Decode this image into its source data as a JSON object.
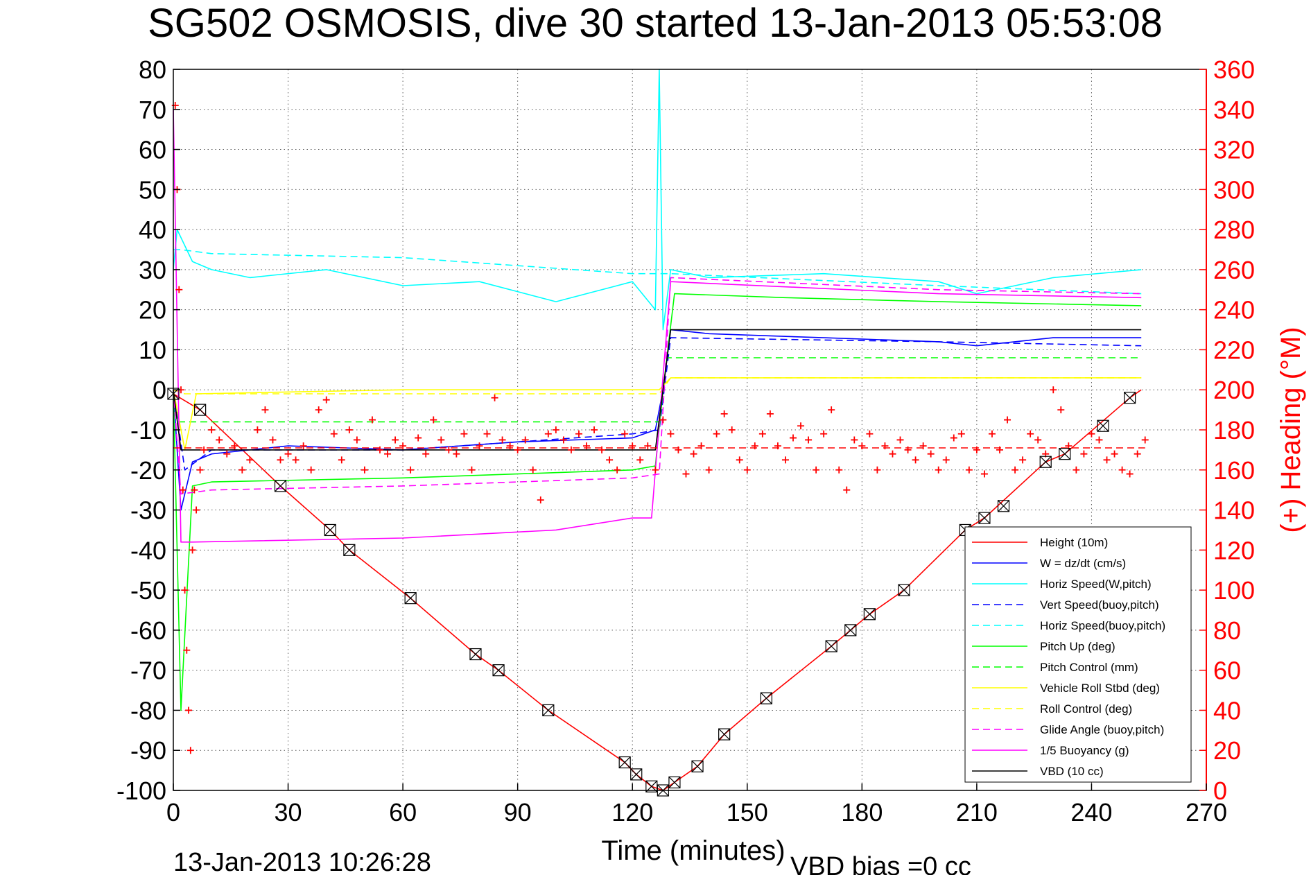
{
  "chart_data": {
    "type": "line",
    "title": "SG502 OSMOSIS, dive 30 started 13-Jan-2013 05:53:08",
    "xlabel": "Time (minutes)",
    "ylabel_right": "(+) Heading (°M)",
    "footer_left": "13-Jan-2013 10:26:28",
    "footer_right": "VBD bias =0 cc",
    "xlim": [
      0,
      270
    ],
    "ylim_left": [
      -100,
      80
    ],
    "ylim_right": [
      0,
      360
    ],
    "x_ticks": [
      0,
      30,
      60,
      90,
      120,
      150,
      180,
      210,
      240,
      270
    ],
    "y_left_ticks": [
      80,
      70,
      60,
      50,
      40,
      30,
      20,
      10,
      0,
      -10,
      -20,
      -30,
      -40,
      -50,
      -60,
      -70,
      -80,
      -90,
      -100
    ],
    "y_right_ticks": [
      360,
      340,
      320,
      300,
      280,
      260,
      240,
      220,
      200,
      180,
      160,
      140,
      120,
      100,
      80,
      60,
      40,
      20,
      0
    ],
    "grid": true,
    "legend_position": "lower-right",
    "colors": {
      "red": "#ff0000",
      "blue": "#0000ff",
      "cyan": "#00ffff",
      "green": "#00ff00",
      "yellow": "#ffff00",
      "magenta": "#ff00ff",
      "black": "#000000"
    },
    "series": [
      {
        "name": "Height (10m)",
        "color": "#ff0000",
        "style": "solid",
        "x": [
          0,
          7,
          28,
          41,
          46,
          62,
          79,
          85,
          98,
          118,
          121,
          125,
          128,
          131,
          137,
          144,
          155,
          172,
          182,
          191,
          207,
          212,
          228,
          233,
          250,
          253
        ],
        "y": [
          -1,
          -5,
          -24,
          -35,
          -40,
          -52,
          -66,
          -70,
          -80,
          -93,
          -96,
          -99,
          -100,
          -98,
          -94,
          -86,
          -77,
          -64,
          -56,
          -50,
          -35,
          -32,
          -18,
          -16,
          -2,
          0
        ]
      },
      {
        "name": "W = dz/dt (cm/s)",
        "color": "#0000ff",
        "style": "solid",
        "x": [
          0,
          2,
          5,
          10,
          30,
          60,
          90,
          120,
          126,
          128,
          130,
          140,
          170,
          200,
          210,
          230,
          253
        ],
        "y": [
          0,
          -30,
          -18,
          -16,
          -14,
          -15,
          -13,
          -12,
          -10,
          0,
          15,
          14,
          13,
          12,
          11,
          13,
          13
        ]
      },
      {
        "name": "Horiz Speed(W,pitch)",
        "color": "#00ffff",
        "style": "solid",
        "x": [
          0,
          1,
          5,
          10,
          20,
          40,
          60,
          80,
          100,
          120,
          126,
          127,
          128,
          130,
          140,
          170,
          200,
          210,
          230,
          253
        ],
        "y": [
          30,
          40,
          32,
          30,
          28,
          30,
          26,
          27,
          22,
          27,
          20,
          80,
          15,
          30,
          28,
          29,
          27,
          24,
          28,
          30
        ]
      },
      {
        "name": "Vert Speed(buoy,pitch)",
        "color": "#0000ff",
        "style": "dashed",
        "x": [
          0,
          3,
          10,
          60,
          120,
          127,
          130,
          200,
          253
        ],
        "y": [
          0,
          -20,
          -15,
          -15,
          -11,
          -10,
          13,
          12,
          11
        ]
      },
      {
        "name": "Horiz Speed(buoy,pitch)",
        "color": "#00ffff",
        "style": "dashed",
        "x": [
          0,
          2,
          10,
          60,
          120,
          127,
          130,
          200,
          253
        ],
        "y": [
          35,
          35,
          34,
          33,
          29,
          29,
          29,
          26,
          24
        ]
      },
      {
        "name": "Pitch Up (deg)",
        "color": "#00ff00",
        "style": "solid",
        "x": [
          0,
          2,
          5,
          10,
          60,
          120,
          126,
          128,
          131,
          160,
          200,
          253
        ],
        "y": [
          0,
          -80,
          -24,
          -23,
          -22,
          -20,
          -19,
          0,
          24,
          23,
          22,
          21
        ]
      },
      {
        "name": "Pitch Control (mm)",
        "color": "#00ff00",
        "style": "dashed",
        "x": [
          0,
          1,
          3,
          127,
          129,
          253
        ],
        "y": [
          0,
          -8,
          -8,
          -8,
          8,
          8
        ]
      },
      {
        "name": "Vehicle Roll Stbd (deg)",
        "color": "#ffff00",
        "style": "solid",
        "x": [
          0,
          3,
          6,
          60,
          120,
          127,
          130,
          170,
          210,
          253
        ],
        "y": [
          0,
          -15,
          -1,
          0,
          0,
          0,
          3,
          3,
          3,
          3
        ]
      },
      {
        "name": "Roll Control (deg)",
        "color": "#ffff00",
        "style": "dashed",
        "x": [
          0,
          3,
          127,
          130,
          253
        ],
        "y": [
          0,
          -1,
          -1,
          3,
          3
        ]
      },
      {
        "name": "Glide Angle (buoy,pitch)",
        "color": "#ff00ff",
        "style": "dashed",
        "x": [
          0,
          2,
          10,
          60,
          120,
          127,
          130,
          200,
          253
        ],
        "y": [
          0,
          -26,
          -25,
          -24,
          -22,
          -21,
          28,
          25,
          24
        ]
      },
      {
        "name": "1/5 Buoyancy (g)",
        "color": "#ff00ff",
        "style": "solid",
        "x": [
          0,
          2,
          5,
          60,
          100,
          120,
          125,
          130,
          200,
          253
        ],
        "y": [
          70,
          -38,
          -38,
          -37,
          -35,
          -32,
          -32,
          27,
          24,
          23
        ]
      },
      {
        "name": "VBD (10 cc)",
        "color": "#000000",
        "style": "solid",
        "x": [
          0,
          2,
          5,
          126,
          130,
          253
        ],
        "y": [
          0,
          -15,
          -15,
          -15,
          15,
          15
        ]
      }
    ],
    "heading_series": {
      "name": "(+) Heading (°M)",
      "color": "#ff0000",
      "marker": "+",
      "mean_heading": 171,
      "points_x": [
        0.5,
        1,
        1.5,
        2,
        2.5,
        3,
        3.5,
        4,
        4.5,
        5,
        5.5,
        6,
        7,
        8,
        10,
        12,
        14,
        16,
        18,
        20,
        22,
        24,
        26,
        28,
        30,
        32,
        34,
        36,
        38,
        40,
        42,
        44,
        46,
        48,
        50,
        52,
        54,
        56,
        58,
        60,
        62,
        64,
        66,
        68,
        70,
        72,
        74,
        76,
        78,
        80,
        82,
        84,
        86,
        88,
        90,
        92,
        94,
        96,
        98,
        100,
        102,
        104,
        106,
        108,
        110,
        112,
        114,
        116,
        118,
        120,
        122,
        124,
        126,
        128,
        130,
        132,
        134,
        136,
        138,
        140,
        142,
        144,
        146,
        148,
        150,
        152,
        154,
        156,
        158,
        160,
        162,
        164,
        166,
        168,
        170,
        172,
        174,
        176,
        178,
        180,
        182,
        184,
        186,
        188,
        190,
        192,
        194,
        196,
        198,
        200,
        202,
        204,
        206,
        208,
        210,
        212,
        214,
        216,
        218,
        220,
        222,
        224,
        226,
        228,
        230,
        232,
        234,
        236,
        238,
        240,
        242,
        244,
        246,
        248,
        250,
        252,
        254
      ],
      "points_y": [
        342,
        300,
        250,
        200,
        150,
        100,
        70,
        40,
        20,
        120,
        150,
        140,
        160,
        170,
        180,
        175,
        168,
        172,
        160,
        165,
        180,
        190,
        175,
        165,
        168,
        165,
        172,
        160,
        190,
        195,
        178,
        165,
        180,
        175,
        160,
        185,
        170,
        168,
        175,
        172,
        160,
        176,
        168,
        185,
        175,
        170,
        168,
        178,
        160,
        172,
        178,
        196,
        175,
        172,
        170,
        175,
        160,
        145,
        178,
        180,
        175,
        170,
        178,
        172,
        180,
        170,
        165,
        160,
        178,
        172,
        165,
        172,
        160,
        185,
        178,
        170,
        158,
        168,
        172,
        160,
        178,
        188,
        180,
        165,
        160,
        172,
        178,
        188,
        172,
        165,
        176,
        182,
        175,
        160,
        178,
        190,
        160,
        150,
        175,
        172,
        178,
        160,
        172,
        168,
        175,
        170,
        165,
        172,
        168,
        160,
        165,
        176,
        178,
        160,
        170,
        158,
        178,
        170,
        185,
        160,
        165,
        178,
        175,
        168,
        200,
        190,
        172,
        160,
        168,
        178,
        175,
        165,
        168,
        160,
        158,
        168,
        175
      ]
    },
    "glider_markers_x": [
      0,
      7,
      28,
      41,
      46,
      62,
      79,
      85,
      98,
      118,
      121,
      125,
      128,
      131,
      137,
      144,
      155,
      172,
      177,
      182,
      191,
      207,
      212,
      217,
      228,
      233,
      243,
      250
    ],
    "glider_markers_y": [
      -1,
      -5,
      -24,
      -35,
      -40,
      -52,
      -66,
      -70,
      -80,
      -93,
      -96,
      -99,
      -100,
      -98,
      -94,
      -86,
      -77,
      -64,
      -60,
      -56,
      -50,
      -35,
      -32,
      -29,
      -18,
      -16,
      -9,
      -2
    ],
    "legend": [
      "Height (10m)",
      "W = dz/dt (cm/s)",
      "Horiz Speed(W,pitch)",
      "Vert Speed(buoy,pitch)",
      "Horiz Speed(buoy,pitch)",
      "Pitch Up (deg)",
      "Pitch Control (mm)",
      "Vehicle Roll Stbd (deg)",
      "Roll Control (deg)",
      "Glide Angle (buoy,pitch)",
      "1/5 Buoyancy (g)",
      "VBD (10 cc)"
    ]
  }
}
